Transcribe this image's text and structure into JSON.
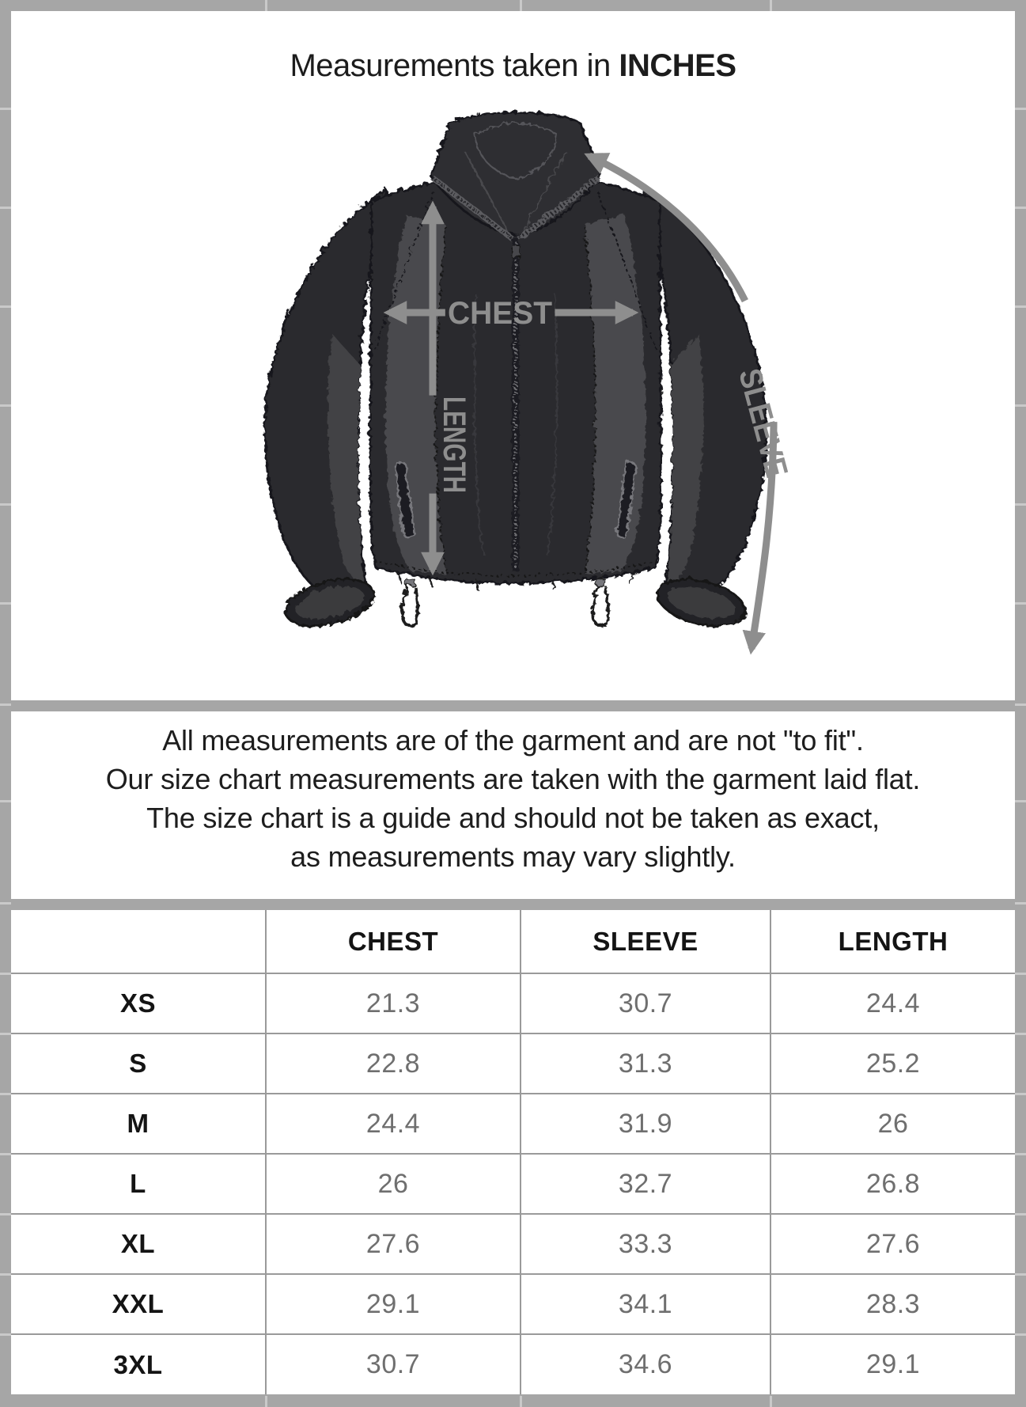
{
  "title": {
    "text": "Measurements taken in",
    "unit": "INCHES"
  },
  "diagram": {
    "garment": "zip-up fleece jacket",
    "chest_label": "CHEST",
    "length_label": "LENGTH",
    "sleeve_label": "SLEEVE"
  },
  "disclaimer": {
    "lines": [
      "All measurements are of the garment and are not \"to fit\".",
      "Our size chart measurements are taken with the garment laid flat.",
      "The size chart is a guide and should not be taken as exact,",
      "as measurements may vary slightly."
    ]
  },
  "size_table": {
    "columns": [
      "CHEST",
      "SLEEVE",
      "LENGTH"
    ],
    "rows": [
      {
        "size": "XS",
        "chest": "21.3",
        "sleeve": "30.7",
        "length": "24.4"
      },
      {
        "size": "S",
        "chest": "22.8",
        "sleeve": "31.3",
        "length": "25.2"
      },
      {
        "size": "M",
        "chest": "24.4",
        "sleeve": "31.9",
        "length": "26"
      },
      {
        "size": "L",
        "chest": "26",
        "sleeve": "32.7",
        "length": "26.8"
      },
      {
        "size": "XL",
        "chest": "27.6",
        "sleeve": "33.3",
        "length": "27.6"
      },
      {
        "size": "XXL",
        "chest": "29.1",
        "sleeve": "34.1",
        "length": "28.3"
      },
      {
        "size": "3XL",
        "chest": "30.7",
        "sleeve": "34.6",
        "length": "29.1"
      }
    ]
  },
  "chart_data": {
    "type": "table",
    "title": "Measurements taken in INCHES",
    "columns": [
      "",
      "CHEST",
      "SLEEVE",
      "LENGTH"
    ],
    "rows": [
      [
        "XS",
        21.3,
        30.7,
        24.4
      ],
      [
        "S",
        22.8,
        31.3,
        25.2
      ],
      [
        "M",
        24.4,
        31.9,
        26
      ],
      [
        "L",
        26,
        32.7,
        26.8
      ],
      [
        "XL",
        27.6,
        33.3,
        27.6
      ],
      [
        "XXL",
        29.1,
        34.1,
        28.3
      ],
      [
        "3XL",
        30.7,
        34.6,
        29.1
      ]
    ]
  },
  "colors": {
    "frame_gray": "#a6a6a6",
    "grid_line": "#9a9a9a",
    "notch_light": "#c9c9c9",
    "heading_text": "#141414",
    "body_text": "#1d1d1d",
    "value_text": "#6f6f6f",
    "arrow_gray": "#8e8e8e",
    "jacket_dark": "#2c2c2f",
    "jacket_panel": "#4a4a4d"
  }
}
